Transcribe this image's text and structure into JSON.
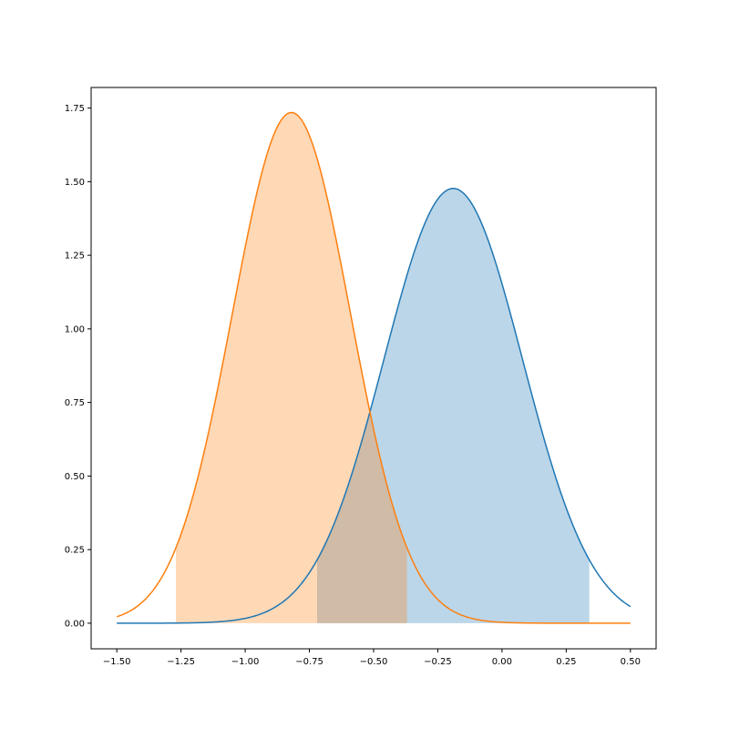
{
  "chart_data": {
    "type": "area",
    "title": "",
    "xlabel": "",
    "ylabel": "",
    "xlim": [
      -1.6,
      0.6
    ],
    "ylim": [
      -0.087,
      1.82
    ],
    "x_range": [
      -1.5,
      0.5
    ],
    "grid": false,
    "legend": "none",
    "x_ticks": [
      -1.5,
      -1.25,
      -1.0,
      -0.75,
      -0.5,
      -0.25,
      0.0,
      0.25,
      0.5
    ],
    "x_tick_labels": [
      "−1.50",
      "−1.25",
      "−1.00",
      "−0.75",
      "−0.50",
      "−0.25",
      "0.00",
      "0.25",
      "0.50"
    ],
    "y_ticks": [
      0.0,
      0.25,
      0.5,
      0.75,
      1.0,
      1.25,
      1.5,
      1.75
    ],
    "y_tick_labels": [
      "0.00",
      "0.25",
      "0.50",
      "0.75",
      "1.00",
      "1.25",
      "1.50",
      "1.75"
    ],
    "series": [
      {
        "distribution": "normal",
        "mean": -0.19,
        "sd": 0.27,
        "peak": 1.477,
        "color": "#1f77b4",
        "fill_color": "#1f77b4",
        "fill_opacity": 0.3,
        "shaded_interval": [
          -0.72,
          0.34
        ]
      },
      {
        "distribution": "normal",
        "mean": -0.82,
        "sd": 0.23,
        "peak": 1.735,
        "color": "#ff7f0e",
        "fill_color": "#ff7f0e",
        "fill_opacity": 0.3,
        "shaded_interval": [
          -1.27,
          -0.37
        ]
      }
    ]
  }
}
